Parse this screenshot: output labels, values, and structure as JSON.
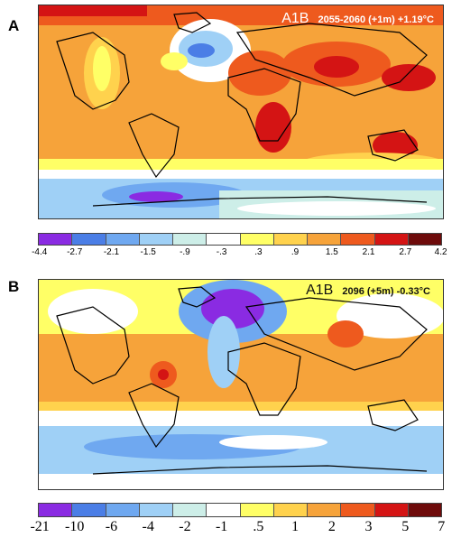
{
  "panels": [
    {
      "letter": "A",
      "scenario": "A1B",
      "subtitle": "2055-2060 (+1m) +1.19°C",
      "colorbar": {
        "ticks": [
          "-4.4",
          "-2.7",
          "-2.1",
          "-1.5",
          "-.9",
          "-.3",
          ".3",
          ".9",
          "1.5",
          "2.1",
          "2.7",
          "4.2"
        ],
        "colors": [
          "#8a2be2",
          "#4b7ee6",
          "#6fa8f0",
          "#9fd0f6",
          "#cdeee8",
          "#ffffff",
          "#ffff66",
          "#ffd24d",
          "#f6a33a",
          "#ee5a1e",
          "#d41414",
          "#6e0b0b"
        ]
      }
    },
    {
      "letter": "B",
      "scenario": "A1B",
      "subtitle": "2096 (+5m) -0.33°C",
      "colorbar": {
        "ticks": [
          "-21",
          "-10",
          "-6",
          "-4",
          "-2",
          "-1",
          ".5",
          "1",
          "2",
          "3",
          "5",
          "7"
        ],
        "colors": [
          "#8a2be2",
          "#4b7ee6",
          "#6fa8f0",
          "#9fd0f6",
          "#cdeee8",
          "#ffffff",
          "#ffff66",
          "#ffd24d",
          "#f6a33a",
          "#ee5a1e",
          "#d41414",
          "#6e0b0b"
        ]
      }
    }
  ]
}
